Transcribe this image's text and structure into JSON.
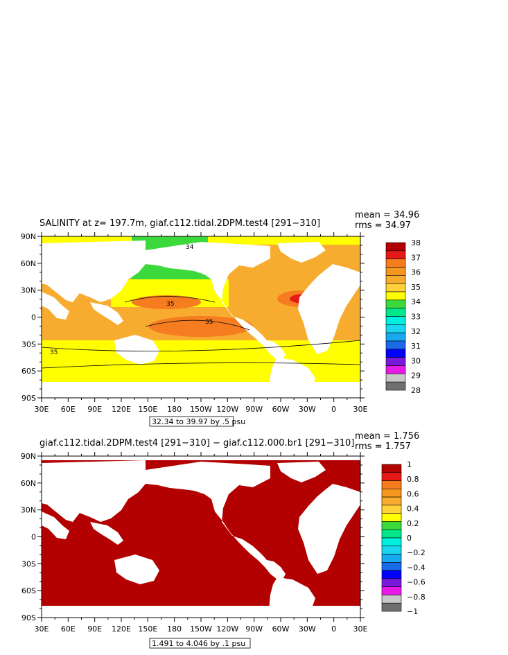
{
  "panels": [
    {
      "title": "SALINITY at z= 197.7m, giaf.c112.tidal.2DPM.test4 [291−310]",
      "stats": [
        "mean = 34.96",
        "rms = 34.97"
      ],
      "y_ticks": [
        "90N",
        "60N",
        "30N",
        "0",
        "30S",
        "60S",
        "90S"
      ],
      "x_ticks": [
        "30E",
        "60E",
        "90E",
        "120E",
        "150E",
        "180",
        "150W",
        "120W",
        "90W",
        "60W",
        "30W",
        "0",
        "30E"
      ],
      "range_label": "32.34 to 39.97 by .5 psu",
      "contour_labels": [
        "34",
        "35",
        "35",
        "35"
      ],
      "colorbar_labels": [
        "38",
        "37",
        "36",
        "35",
        "34",
        "33",
        "32",
        "31",
        "30",
        "29",
        "28"
      ],
      "colorbar_colors": [
        "#b30000",
        "#e61919",
        "#f57c1f",
        "#f7961f",
        "#f8ac2f",
        "#ffd23a",
        "#ffff00",
        "#3cd93c",
        "#00e88a",
        "#00f0e0",
        "#1ad4f0",
        "#18aaf0",
        "#1a6ae8",
        "#0000ff",
        "#7a1ad9",
        "#e619e6",
        "#c8c8c8",
        "#707070"
      ]
    },
    {
      "title": "giaf.c112.tidal.2DPM.test4 [291−310] − giaf.c112.000.br1 [291−310]",
      "stats": [
        "mean = 1.756",
        "rms = 1.757"
      ],
      "y_ticks": [
        "90N",
        "60N",
        "30N",
        "0",
        "30S",
        "60S",
        "90S"
      ],
      "x_ticks": [
        "30E",
        "60E",
        "90E",
        "120E",
        "150E",
        "180",
        "150W",
        "120W",
        "90W",
        "60W",
        "30W",
        "0",
        "30E"
      ],
      "range_label": "1.491 to 4.046 by .1 psu",
      "colorbar_labels": [
        "1",
        "0.8",
        "0.6",
        "0.4",
        "0.2",
        "0",
        "−0.2",
        "−0.4",
        "−0.6",
        "−0.8",
        "−1"
      ],
      "colorbar_colors": [
        "#b30000",
        "#e61919",
        "#f57c1f",
        "#f7961f",
        "#f8ac2f",
        "#ffd23a",
        "#ffff00",
        "#3cd93c",
        "#00e88a",
        "#00f0e0",
        "#1ad4f0",
        "#18aaf0",
        "#1a6ae8",
        "#0000ff",
        "#7a1ad9",
        "#e619e6",
        "#c8c8c8",
        "#707070"
      ]
    }
  ]
}
